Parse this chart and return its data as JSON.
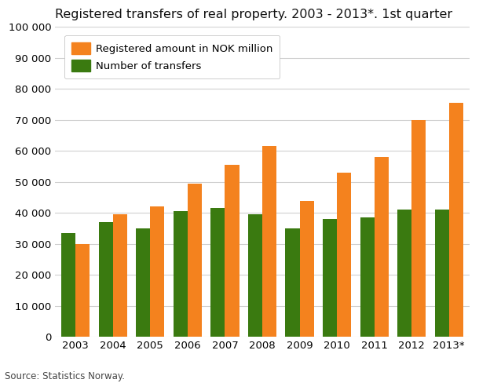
{
  "title": "Registered transfers of real property. 2003 - 2013*. 1st quarter",
  "years": [
    "2003",
    "2004",
    "2005",
    "2006",
    "2007",
    "2008",
    "2009",
    "2010",
    "2011",
    "2012",
    "2013*"
  ],
  "registered_amount": [
    30000,
    39500,
    42000,
    49500,
    55500,
    61500,
    44000,
    53000,
    58000,
    70000,
    75500
  ],
  "num_transfers": [
    33500,
    37000,
    35000,
    40500,
    41500,
    39500,
    35000,
    38000,
    38500,
    41000,
    41000
  ],
  "orange_color": "#F4821E",
  "green_color": "#3A7A10",
  "ylim": [
    0,
    100000
  ],
  "yticks": [
    0,
    10000,
    20000,
    30000,
    40000,
    50000,
    60000,
    70000,
    80000,
    90000,
    100000
  ],
  "legend_label_orange": "Registered amount in NOK million",
  "legend_label_green": "Number of transfers",
  "source_text": "Source: Statistics Norway.",
  "background_color": "#ffffff",
  "grid_color": "#d0d0d0",
  "bar_width": 0.38,
  "title_fontsize": 11.5,
  "tick_fontsize": 9.5,
  "legend_fontsize": 9.5
}
